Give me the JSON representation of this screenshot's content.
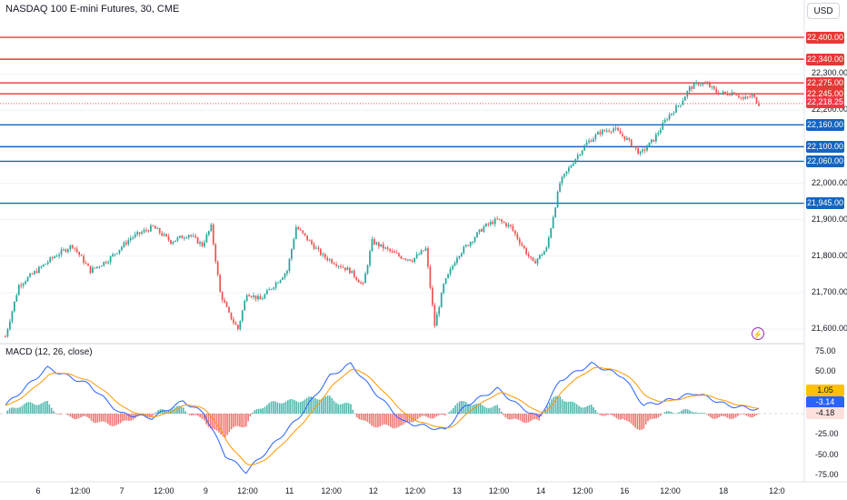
{
  "header": {
    "symbol_title": "NASDAQ 100 E-mini Futures, 30, CME",
    "currency": "USD"
  },
  "colors": {
    "resistance": "#e53935",
    "support": "#1565c0",
    "up_candle": "#26a69a",
    "down_candle": "#ef5350",
    "macd_line": "#2962ff",
    "signal_line": "#ff9800",
    "hist_up": "#26a69a",
    "hist_down": "#ef5350",
    "last_price_tag": "#f23645"
  },
  "price_axis": {
    "ticks": [
      "22,300.00",
      "22,200.00",
      "22,000.00",
      "21,900.00",
      "21,800.00",
      "21,700.00",
      "21,600.00"
    ],
    "tick_values": [
      22300,
      22200,
      22000,
      21900,
      21800,
      21700,
      21600
    ],
    "last_price": "22,218.25"
  },
  "levels": [
    {
      "label": "22,400.00",
      "value": 22400,
      "kind": "resistance"
    },
    {
      "label": "22,340.00",
      "value": 22340,
      "kind": "resistance"
    },
    {
      "label": "22,275.00",
      "value": 22275,
      "kind": "resistance"
    },
    {
      "label": "22,245.00",
      "value": 22245,
      "kind": "resistance"
    },
    {
      "label": "22,160.00",
      "value": 22160,
      "kind": "support"
    },
    {
      "label": "22,100.00",
      "value": 22100,
      "kind": "support"
    },
    {
      "label": "22,060.00",
      "value": 22060,
      "kind": "support"
    },
    {
      "label": "21,945.00",
      "value": 21945,
      "kind": "support"
    }
  ],
  "macd": {
    "label": "MACD (12, 26, close)",
    "axis_ticks": [
      "75.00",
      "50.00",
      "-25.00",
      "-50.00",
      "-75.00"
    ],
    "axis_values": [
      75,
      50,
      -25,
      -50,
      -75
    ],
    "signal_value": "1.05",
    "macd_value": "-3.14",
    "hist_value": "-4.18"
  },
  "time_axis": {
    "ticks": [
      "6",
      "12:00",
      "7",
      "12:00",
      "9",
      "12:00",
      "11",
      "12:00",
      "12",
      "12:00",
      "13",
      "12:00",
      "14",
      "12:00",
      "16",
      "12:00",
      "18",
      "12:0"
    ],
    "tick_positions_frac": [
      0.0,
      0.055,
      0.11,
      0.165,
      0.22,
      0.275,
      0.33,
      0.385,
      0.44,
      0.495,
      0.55,
      0.605,
      0.66,
      0.715,
      0.77,
      0.83,
      0.9,
      0.97
    ]
  },
  "chart_data": {
    "type": "candlestick",
    "title": "NASDAQ 100 E-mini Futures, 30, CME",
    "ylim": [
      21560,
      22440
    ],
    "anchors": [
      [
        0,
        21580
      ],
      [
        6,
        21720
      ],
      [
        14,
        21760
      ],
      [
        22,
        21800
      ],
      [
        30,
        21830
      ],
      [
        38,
        21760
      ],
      [
        46,
        21790
      ],
      [
        56,
        21850
      ],
      [
        66,
        21880
      ],
      [
        74,
        21840
      ],
      [
        82,
        21860
      ],
      [
        88,
        21830
      ],
      [
        92,
        21880
      ],
      [
        96,
        21700
      ],
      [
        100,
        21640
      ],
      [
        104,
        21600
      ],
      [
        108,
        21700
      ],
      [
        114,
        21680
      ],
      [
        120,
        21720
      ],
      [
        126,
        21760
      ],
      [
        130,
        21880
      ],
      [
        136,
        21840
      ],
      [
        142,
        21800
      ],
      [
        148,
        21780
      ],
      [
        154,
        21760
      ],
      [
        160,
        21720
      ],
      [
        164,
        21840
      ],
      [
        170,
        21820
      ],
      [
        176,
        21800
      ],
      [
        182,
        21790
      ],
      [
        188,
        21820
      ],
      [
        192,
        21610
      ],
      [
        196,
        21720
      ],
      [
        202,
        21800
      ],
      [
        208,
        21840
      ],
      [
        214,
        21880
      ],
      [
        220,
        21900
      ],
      [
        226,
        21880
      ],
      [
        232,
        21820
      ],
      [
        236,
        21780
      ],
      [
        242,
        21820
      ],
      [
        248,
        22000
      ],
      [
        254,
        22060
      ],
      [
        260,
        22110
      ],
      [
        266,
        22140
      ],
      [
        272,
        22150
      ],
      [
        278,
        22120
      ],
      [
        284,
        22080
      ],
      [
        290,
        22120
      ],
      [
        296,
        22180
      ],
      [
        302,
        22220
      ],
      [
        306,
        22260
      ],
      [
        310,
        22275
      ],
      [
        314,
        22270
      ],
      [
        318,
        22250
      ],
      [
        322,
        22245
      ],
      [
        326,
        22250
      ],
      [
        330,
        22230
      ],
      [
        334,
        22240
      ],
      [
        337,
        22218
      ]
    ]
  }
}
